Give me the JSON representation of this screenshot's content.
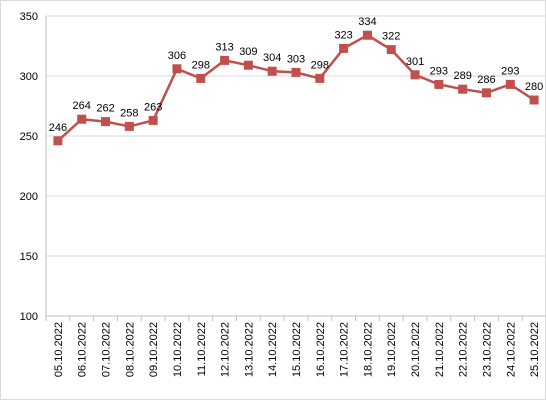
{
  "chart_data": {
    "type": "line",
    "title": "",
    "xlabel": "",
    "ylabel": "",
    "ylim": [
      100,
      350
    ],
    "yticks": [
      100,
      150,
      200,
      250,
      300,
      350
    ],
    "grid": "horizontal",
    "legend": "none",
    "series_color": "#c0504d",
    "categories": [
      "05.10.2022",
      "06.10.2022",
      "07.10.2022",
      "08.10.2022",
      "09.10.2022",
      "10.10.2022",
      "11.10.2022",
      "12.10.2022",
      "13.10.2022",
      "14.10.2022",
      "15.10.2022",
      "16.10.2022",
      "17.10.2022",
      "18.10.2022",
      "19.10.2022",
      "20.10.2022",
      "21.10.2022",
      "22.10.2022",
      "23.10.2022",
      "24.10.2022",
      "25.10.2022"
    ],
    "series": [
      {
        "values": [
          246,
          264,
          262,
          258,
          263,
          306,
          298,
          313,
          309,
          304,
          303,
          298,
          323,
          334,
          322,
          301,
          293,
          289,
          286,
          293,
          280
        ]
      }
    ]
  }
}
